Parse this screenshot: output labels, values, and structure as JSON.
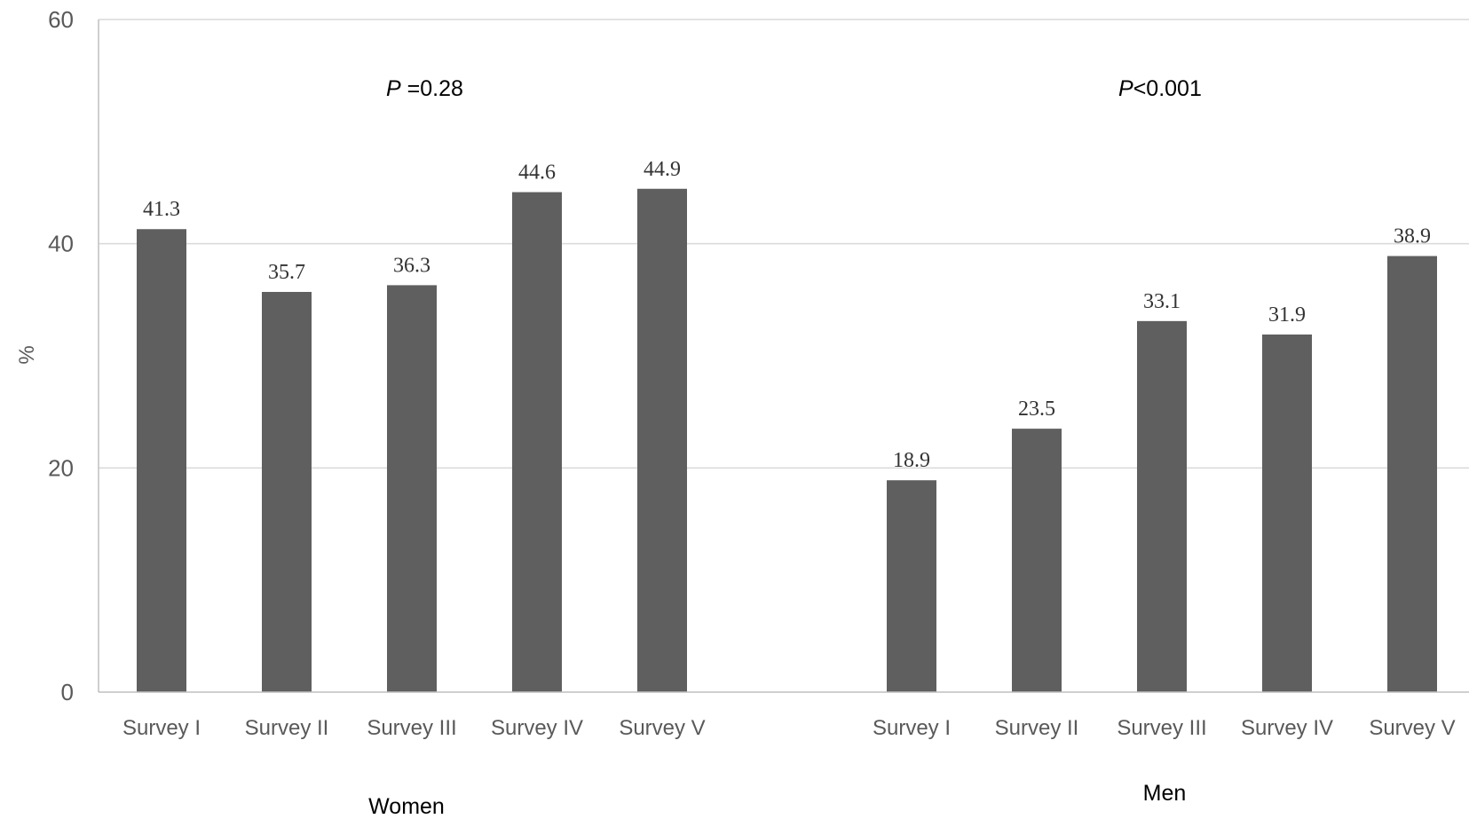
{
  "chart_data": {
    "type": "bar",
    "ylabel": "%",
    "ylim": [
      0,
      60
    ],
    "yticks": [
      0,
      20,
      40,
      60
    ],
    "grid": true,
    "bar_color": "#5f5f5f",
    "groups": [
      {
        "name": "Women",
        "annotation_italic": "P",
        "annotation_rest": " =0.28",
        "categories": [
          "Survey I",
          "Survey II",
          "Survey III",
          "Survey IV",
          "Survey V"
        ],
        "values": [
          41.3,
          35.7,
          36.3,
          44.6,
          44.9
        ],
        "value_labels": [
          "41.3",
          "35.7",
          "36.3",
          "44.6",
          "44.9"
        ]
      },
      {
        "name": "Men",
        "annotation_italic": "P",
        "annotation_rest": "<0.001",
        "categories": [
          "Survey I",
          "Survey II",
          "Survey III",
          "Survey IV",
          "Survey V"
        ],
        "values": [
          18.9,
          23.5,
          33.1,
          31.9,
          38.9
        ],
        "value_labels": [
          "18.9",
          "23.5",
          "33.1",
          "31.9",
          "38.9"
        ]
      }
    ]
  }
}
